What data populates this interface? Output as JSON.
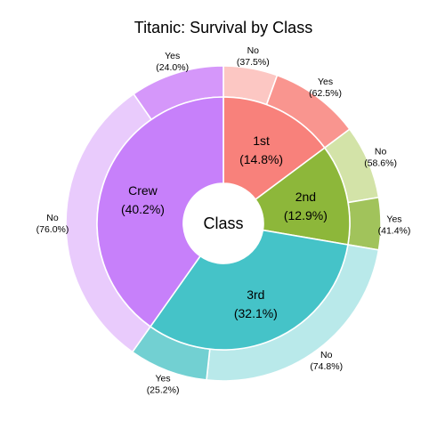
{
  "chart_data": {
    "type": "pie",
    "subtype": "donut-sunburst",
    "title": "Titanic: Survival by Class",
    "center_label": "Class",
    "inner": [
      {
        "name": "1st",
        "percent": 14.8,
        "label_pct": "(14.8%)",
        "color": "#F8817B"
      },
      {
        "name": "2nd",
        "percent": 12.9,
        "label_pct": "(12.9%)",
        "color": "#8DB73A"
      },
      {
        "name": "3rd",
        "percent": 32.1,
        "label_pct": "(32.1%)",
        "color": "#45C3C8"
      },
      {
        "name": "Crew",
        "percent": 40.2,
        "label_pct": "(40.2%)",
        "color": "#C780FA"
      }
    ],
    "outer": [
      {
        "parent": "1st",
        "name": "No",
        "percent": 37.5,
        "label_pct": "(37.5%)",
        "color": "#FCC7C3"
      },
      {
        "parent": "1st",
        "name": "Yes",
        "percent": 62.5,
        "label_pct": "(62.5%)",
        "color": "#F9958F"
      },
      {
        "parent": "2nd",
        "name": "No",
        "percent": 58.6,
        "label_pct": "(58.6%)",
        "color": "#D3E3A8"
      },
      {
        "parent": "2nd",
        "name": "Yes",
        "percent": 41.4,
        "label_pct": "(41.4%)",
        "color": "#A1C35B"
      },
      {
        "parent": "3rd",
        "name": "No",
        "percent": 74.8,
        "label_pct": "(74.8%)",
        "color": "#B9E9EA"
      },
      {
        "parent": "3rd",
        "name": "Yes",
        "percent": 25.2,
        "label_pct": "(25.2%)",
        "color": "#72D0D2"
      },
      {
        "parent": "Crew",
        "name": "No",
        "percent": 76.0,
        "label_pct": "(76.0%)",
        "color": "#E9CBFC"
      },
      {
        "parent": "Crew",
        "name": "Yes",
        "percent": 24.0,
        "label_pct": "(24.0%)",
        "color": "#D597FA"
      }
    ]
  }
}
